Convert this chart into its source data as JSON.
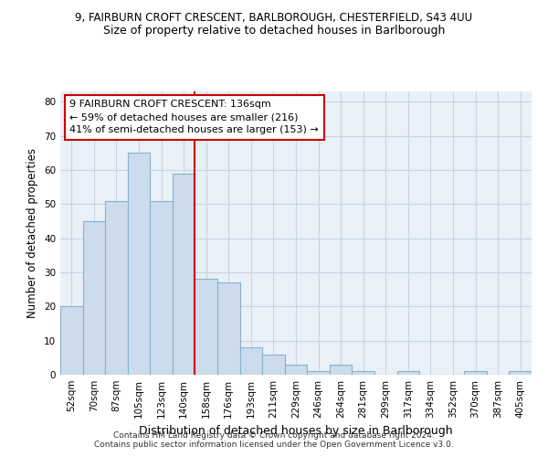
{
  "title1": "9, FAIRBURN CROFT CRESCENT, BARLBOROUGH, CHESTERFIELD, S43 4UU",
  "title2": "Size of property relative to detached houses in Barlborough",
  "xlabel": "Distribution of detached houses by size in Barlborough",
  "ylabel": "Number of detached properties",
  "categories": [
    "52sqm",
    "70sqm",
    "87sqm",
    "105sqm",
    "123sqm",
    "140sqm",
    "158sqm",
    "176sqm",
    "193sqm",
    "211sqm",
    "229sqm",
    "246sqm",
    "264sqm",
    "281sqm",
    "299sqm",
    "317sqm",
    "334sqm",
    "352sqm",
    "370sqm",
    "387sqm",
    "405sqm"
  ],
  "values": [
    20,
    45,
    51,
    65,
    51,
    59,
    28,
    27,
    8,
    6,
    3,
    1,
    3,
    1,
    0,
    1,
    0,
    0,
    1,
    0,
    1
  ],
  "bar_color": "#ccdcec",
  "bar_edge_color": "#8ab0cc",
  "vline_x": 5.5,
  "vline_color": "#cc0000",
  "annotation_line1": "9 FAIRBURN CROFT CRESCENT: 136sqm",
  "annotation_line2": "← 59% of detached houses are smaller (216)",
  "annotation_line3": "41% of semi-detached houses are larger (153) →",
  "annotation_box_color": "#ffffff",
  "annotation_box_edge": "#cc0000",
  "ylim": [
    0,
    83
  ],
  "yticks": [
    0,
    10,
    20,
    30,
    40,
    50,
    60,
    70,
    80
  ],
  "footer1": "Contains HM Land Registry data © Crown copyright and database right 2024.",
  "footer2": "Contains public sector information licensed under the Open Government Licence v3.0.",
  "bg_color": "#e8f0f8",
  "grid_color": "#c8d4e0"
}
